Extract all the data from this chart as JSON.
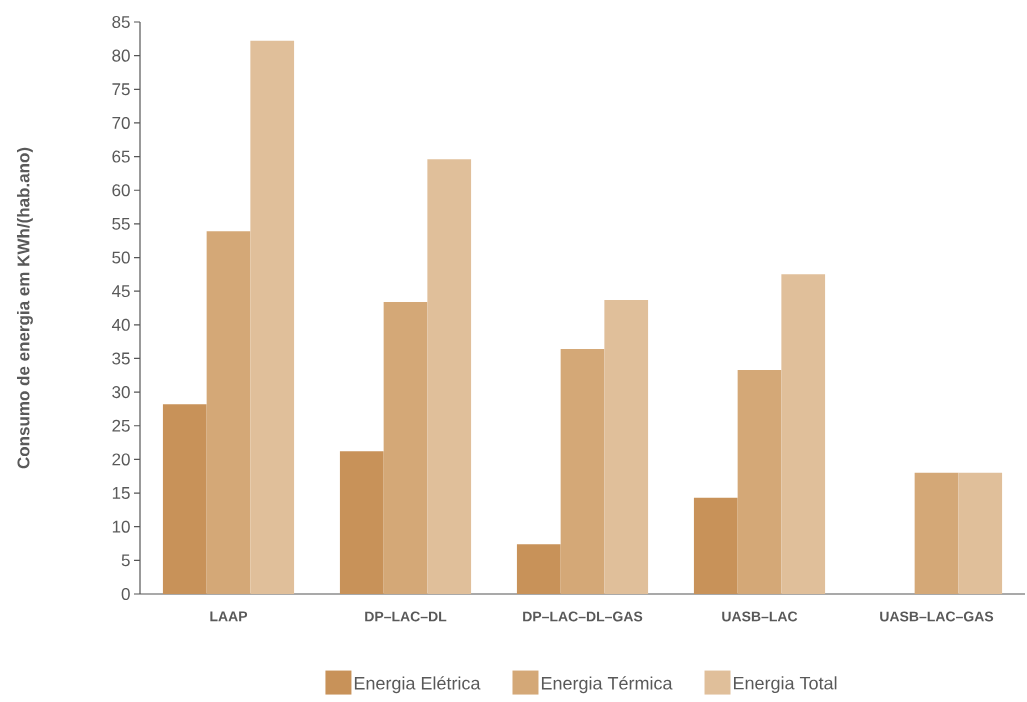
{
  "chart_data": {
    "type": "bar",
    "ylabel": "Consumo de energia em KWh/(hab.ano)",
    "categories": [
      "LAAP",
      "DP–LAC–DL",
      "DP–LAC–DL–GAS",
      "UASB–LAC",
      "UASB–LAC–GAS"
    ],
    "series": [
      {
        "name": "Energia Elétrica",
        "color": "#c89259",
        "values": [
          28.2,
          21.2,
          7.4,
          14.3,
          null
        ]
      },
      {
        "name": "Energia Térmica",
        "color": "#d4a877",
        "values": [
          53.9,
          43.4,
          36.4,
          33.3,
          18.0
        ]
      },
      {
        "name": "Energia Total",
        "color": "#e0bf9a",
        "values": [
          82.2,
          64.6,
          43.7,
          47.5,
          18.0
        ]
      }
    ],
    "ylim": [
      0,
      85
    ],
    "yticks": [
      0,
      5,
      10,
      15,
      20,
      25,
      30,
      35,
      40,
      45,
      50,
      55,
      60,
      65,
      70,
      75,
      80,
      85
    ],
    "legend": "bottom"
  }
}
